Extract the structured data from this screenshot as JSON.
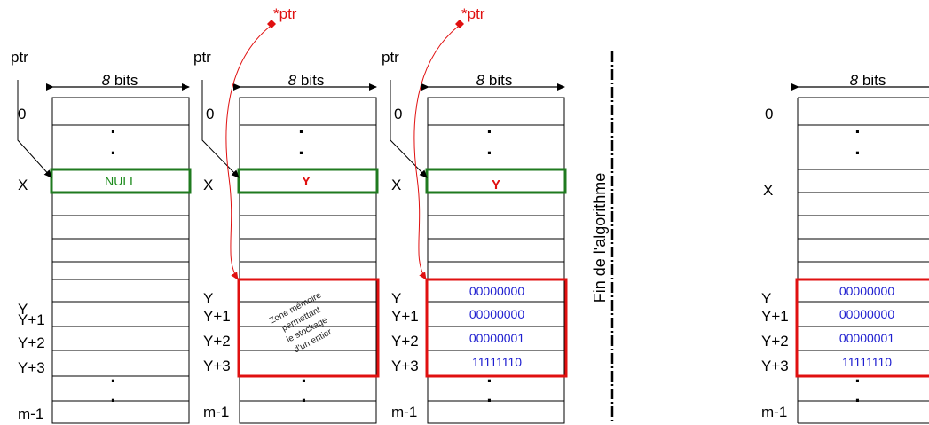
{
  "common": {
    "width_label": "bits",
    "width_value": "8",
    "ptr_label": "ptr",
    "deref_label": "*ptr",
    "dots": "·"
  },
  "address_labels": {
    "zero": "0",
    "x": "X",
    "y": "Y",
    "y1": "Y+1",
    "y2": "Y+2",
    "y3": "Y+3",
    "m1": "m-1"
  },
  "panels": [
    {
      "x_cell": "NULL"
    },
    {
      "x_cell": "Y",
      "zone_lines": [
        "Zone mémoire",
        "permettant",
        "le stockage",
        "d'un entier"
      ]
    },
    {
      "x_cell": "Y",
      "y_values": [
        "00000000",
        "00000000",
        "00000001",
        "11111110"
      ]
    },
    {
      "y_values": [
        "00000000",
        "00000000",
        "00000001",
        "11111110"
      ]
    }
  ],
  "separator_label": "Fin de l'algorithme",
  "colors": {
    "pointer_cell": "#1f7a1f",
    "allocated_zone": "#e01010",
    "values": "#1f1fd0"
  }
}
